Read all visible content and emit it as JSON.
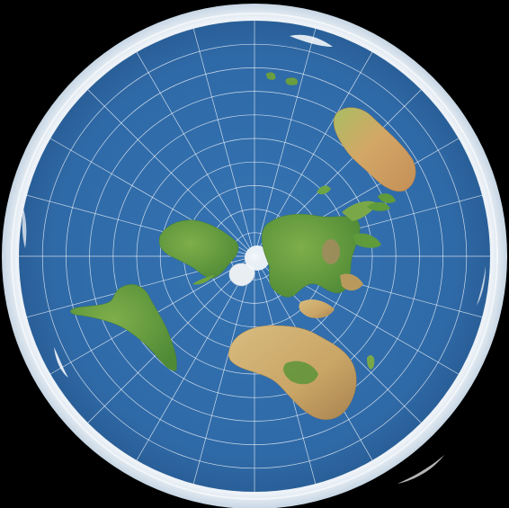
{
  "map": {
    "projection": "azimuthal-equidistant-north-polar",
    "colors": {
      "background": "#000000",
      "ocean": "#2f6aa8",
      "ocean_edge": "#2a5f98",
      "ice_ring": "#e4edf5",
      "ice_shadow": "#c9d8e6",
      "land_green": "#5e9a3e",
      "land_light_green": "#8fb34f",
      "land_tan": "#c8a768",
      "land_desert": "#d9bd82",
      "land_brown": "#a07a4a",
      "arctic_ice": "#f2f6fa",
      "graticule": "#ffffff"
    },
    "graticule": {
      "meridian_count": 24,
      "parallel_count": 9
    },
    "regions": [
      {
        "name": "north-pole-ice-cap"
      },
      {
        "name": "north-america"
      },
      {
        "name": "greenland"
      },
      {
        "name": "south-america"
      },
      {
        "name": "europe"
      },
      {
        "name": "asia"
      },
      {
        "name": "africa"
      },
      {
        "name": "madagascar"
      },
      {
        "name": "arabia"
      },
      {
        "name": "india"
      },
      {
        "name": "southeast-asia"
      },
      {
        "name": "japan"
      },
      {
        "name": "australia"
      },
      {
        "name": "new-zealand"
      },
      {
        "name": "antarctica-ring"
      }
    ]
  }
}
